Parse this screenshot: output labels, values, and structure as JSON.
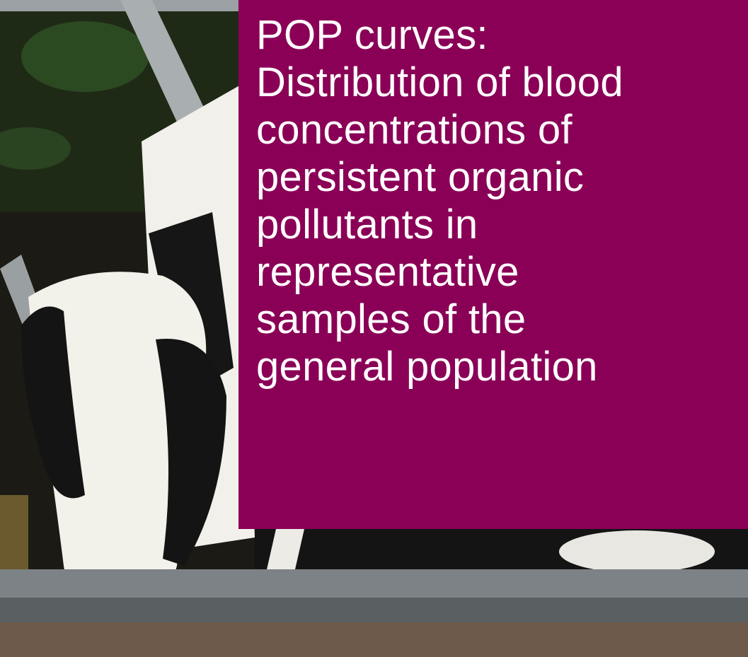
{
  "title": {
    "lines": [
      "POP curves:",
      "Distribution of blood",
      "concentrations of",
      "persistent organic",
      "pollutants in",
      "representative",
      "samples of the",
      "general population"
    ]
  }
}
